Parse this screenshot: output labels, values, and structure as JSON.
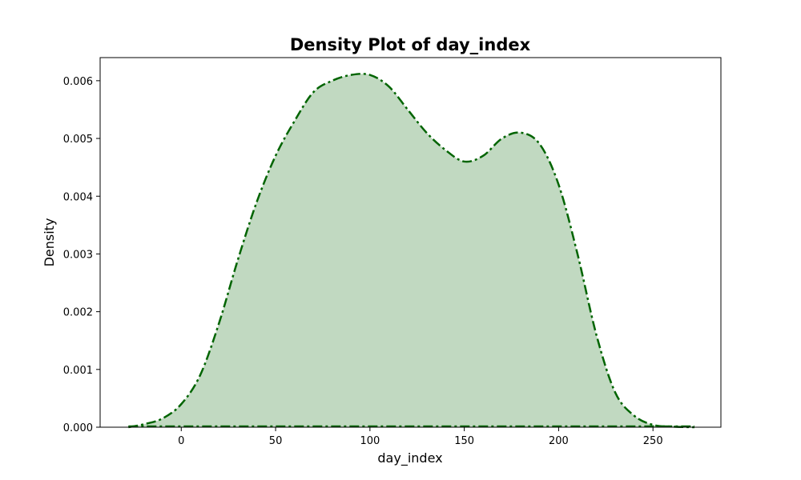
{
  "chart_data": {
    "type": "area",
    "title": "Density Plot of day_index",
    "xlabel": "day_index",
    "ylabel": "Density",
    "xlim": [
      -43,
      286
    ],
    "ylim": [
      0,
      0.0064
    ],
    "x_ticks": [
      0,
      50,
      100,
      150,
      200,
      250
    ],
    "y_ticks": [
      0.0,
      0.001,
      0.002,
      0.003,
      0.004,
      0.005,
      0.006
    ],
    "x_tick_labels": [
      "0",
      "50",
      "100",
      "150",
      "200",
      "250"
    ],
    "y_tick_labels": [
      "0.000",
      "0.001",
      "0.002",
      "0.003",
      "0.004",
      "0.005",
      "0.006"
    ],
    "grid": false,
    "colors": {
      "line": "#006400",
      "fill": "#c1d9c1"
    },
    "line_style": "dash-dot",
    "series": [
      {
        "x": [
          -28,
          -20,
          -10,
          0,
          10,
          20,
          30,
          40,
          50,
          60,
          70,
          80,
          90,
          100,
          110,
          120,
          130,
          140,
          150,
          160,
          170,
          180,
          190,
          200,
          210,
          220,
          230,
          240,
          250,
          260,
          272
        ],
        "y": [
          0.0,
          5e-05,
          0.00015,
          0.0004,
          0.0009,
          0.0018,
          0.0029,
          0.0039,
          0.0047,
          0.0053,
          0.0058,
          0.006,
          0.0061,
          0.0061,
          0.0059,
          0.0055,
          0.0051,
          0.0048,
          0.0046,
          0.0047,
          0.005,
          0.0051,
          0.0049,
          0.0042,
          0.003,
          0.0016,
          0.0006,
          0.0002,
          4e-05,
          1e-05,
          0.0
        ]
      }
    ]
  }
}
